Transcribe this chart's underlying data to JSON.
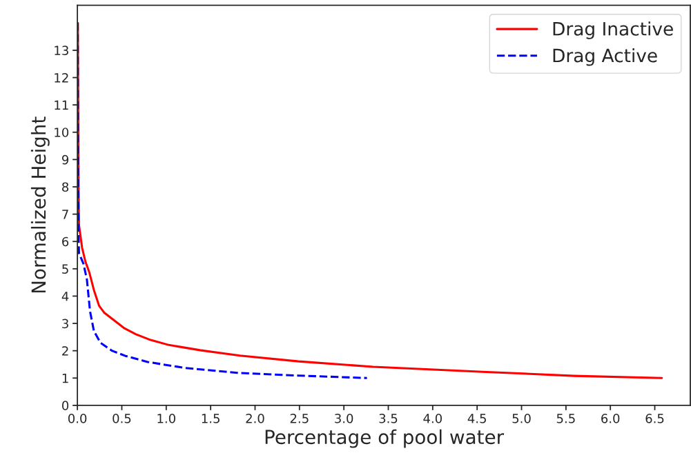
{
  "chart_data": {
    "type": "line",
    "xlabel": "Percentage of pool water",
    "ylabel": "Normalized Height",
    "xlim": [
      0,
      6.9
    ],
    "ylim": [
      0,
      14.65
    ],
    "xticks": [
      {
        "value": 0,
        "label": "0.0"
      },
      0.5,
      {
        "value": 1,
        "label": "1.0"
      },
      1.5,
      {
        "value": 2,
        "label": "2.0"
      },
      2.5,
      {
        "value": 3,
        "label": "3.0"
      },
      3.5,
      {
        "value": 4,
        "label": "4.0"
      },
      4.5,
      {
        "value": 5,
        "label": "5.0"
      },
      5.5,
      {
        "value": 6,
        "label": "6.0"
      },
      6.5
    ],
    "yticks": [
      0,
      1,
      2,
      3,
      4,
      5,
      6,
      7,
      8,
      9,
      10,
      11,
      12,
      13
    ],
    "grid": false,
    "legend": "top right",
    "series": [
      {
        "name": "Drag Inactive",
        "color": "#ff0000",
        "line_style": "solid",
        "x": [
          0.005,
          0.01,
          0.015,
          0.018,
          0.053,
          0.089,
          0.136,
          0.186,
          0.245,
          0.3,
          0.53,
          0.66,
          0.81,
          1.03,
          1.38,
          1.83,
          2.49,
          3.33,
          4.56,
          5.59,
          6.58
        ],
        "values": [
          14.0,
          9.5,
          7.2,
          6.6,
          5.77,
          5.28,
          4.85,
          4.22,
          3.64,
          3.4,
          2.82,
          2.6,
          2.41,
          2.21,
          2.02,
          1.82,
          1.61,
          1.41,
          1.23,
          1.08,
          1.0
        ]
      },
      {
        "name": "Drag Active",
        "color": "#0000ff",
        "line_style": "dashed",
        "x": [
          0.003,
          0.008,
          0.012,
          0.018,
          0.068,
          0.107,
          0.142,
          0.186,
          0.26,
          0.39,
          0.54,
          0.79,
          1.21,
          1.8,
          2.49,
          3.26
        ],
        "values": [
          14.0,
          9.0,
          6.35,
          5.57,
          5.19,
          4.61,
          3.45,
          2.72,
          2.29,
          2.0,
          1.81,
          1.59,
          1.37,
          1.19,
          1.09,
          1.0
        ]
      }
    ]
  }
}
